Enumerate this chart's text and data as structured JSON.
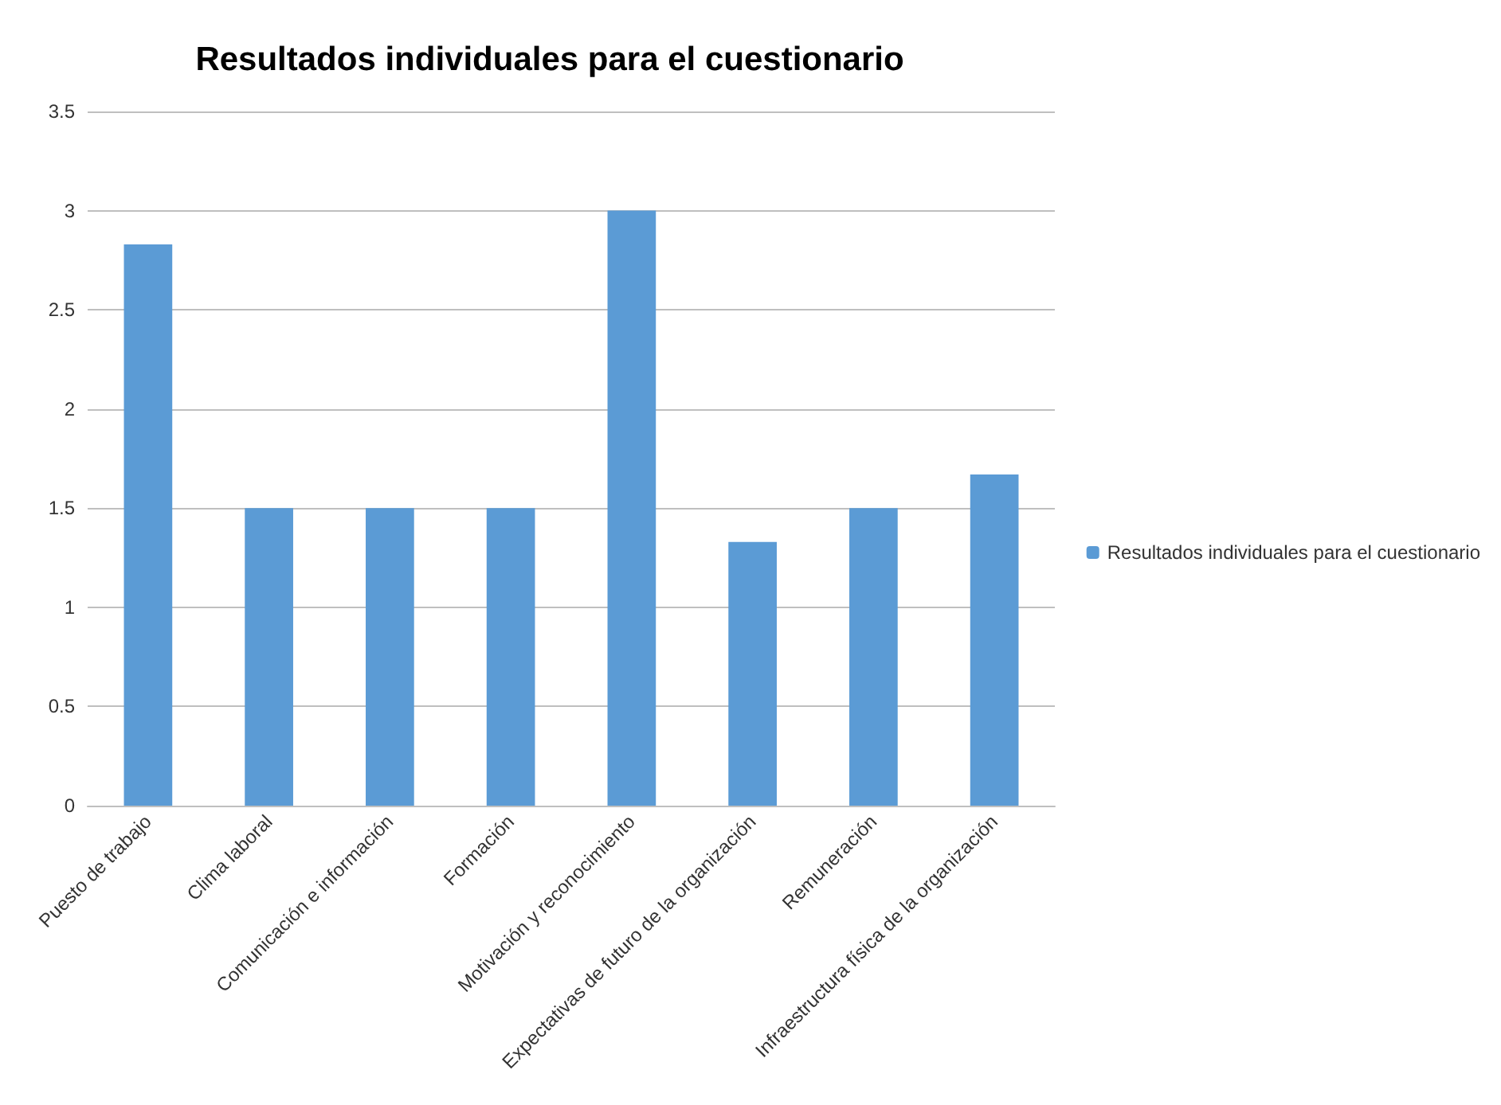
{
  "chart_data": {
    "type": "bar",
    "title": "Resultados individuales para el cuestionario",
    "categories": [
      "Puesto de trabajo",
      "Clima laboral",
      "Comunicación e información",
      "Formación",
      "Motivación y reconocimiento",
      "Expectativas de futuro de la organización",
      "Remuneración",
      "Infraestructura física de la organización"
    ],
    "series": [
      {
        "name": "Resultados individuales para el cuestionario",
        "color": "#5b9bd5",
        "values": [
          2.83,
          1.5,
          1.5,
          1.5,
          3,
          1.33,
          1.5,
          1.67
        ]
      }
    ],
    "ylim": [
      0,
      3.5
    ],
    "yticks": [
      0,
      0.5,
      1,
      1.5,
      2,
      2.5,
      3,
      3.5
    ],
    "grid": "y",
    "legend": "right"
  }
}
